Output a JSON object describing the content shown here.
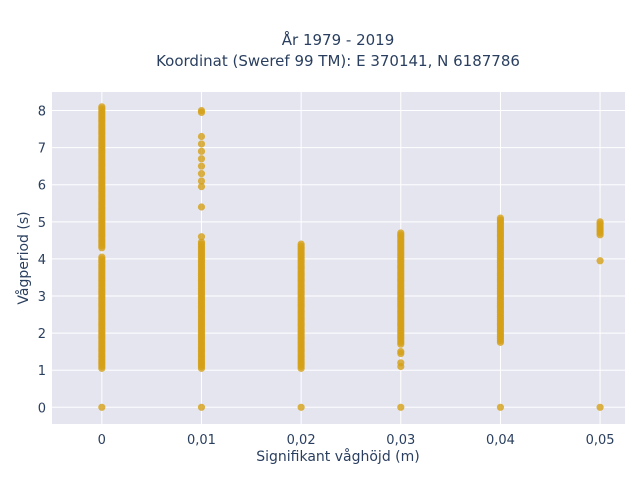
{
  "chart_data": {
    "type": "scatter",
    "title_line1": "År 1979 - 2019",
    "title_line2": "Koordinat (Sweref 99 TM): E 370141, N 6187786",
    "xlabel": "Signifikant våghöjd (m)",
    "ylabel": "Vågperiod (s)",
    "xlim": [
      -0.005,
      0.0525
    ],
    "ylim": [
      -0.45,
      8.5
    ],
    "x_ticks": [
      {
        "value": 0,
        "label": "0"
      },
      {
        "value": 0.01,
        "label": "0,01"
      },
      {
        "value": 0.02,
        "label": "0,02"
      },
      {
        "value": 0.03,
        "label": "0,03"
      },
      {
        "value": 0.04,
        "label": "0,04"
      },
      {
        "value": 0.05,
        "label": "0,05"
      }
    ],
    "y_ticks": [
      {
        "value": 0,
        "label": "0"
      },
      {
        "value": 1,
        "label": "1"
      },
      {
        "value": 2,
        "label": "2"
      },
      {
        "value": 3,
        "label": "3"
      },
      {
        "value": 4,
        "label": "4"
      },
      {
        "value": 5,
        "label": "5"
      },
      {
        "value": 6,
        "label": "6"
      },
      {
        "value": 7,
        "label": "7"
      },
      {
        "value": 8,
        "label": "8"
      }
    ],
    "grid": true,
    "background_color": "#e5e5f0",
    "marker_color": "#d4a017",
    "series": [
      {
        "x": 0,
        "bands": [
          [
            1.05,
            4.05
          ],
          [
            4.3,
            8.1
          ]
        ],
        "points": [
          0
        ]
      },
      {
        "x": 0.01,
        "bands": [
          [
            1.05,
            4.45
          ]
        ],
        "points": [
          0,
          4.6,
          5.4,
          5.95,
          6.1,
          6.3,
          6.5,
          6.7,
          6.9,
          7.1,
          7.3,
          7.95,
          8.0
        ]
      },
      {
        "x": 0.02,
        "bands": [
          [
            1.05,
            4.4
          ]
        ],
        "points": [
          0
        ]
      },
      {
        "x": 0.03,
        "bands": [
          [
            1.7,
            4.7
          ]
        ],
        "points": [
          0,
          1.1,
          1.2,
          1.45,
          1.5
        ]
      },
      {
        "x": 0.04,
        "bands": [
          [
            1.75,
            5.1
          ]
        ],
        "points": [
          0
        ]
      },
      {
        "x": 0.05,
        "bands": [
          [
            4.65,
            5.0
          ]
        ],
        "points": [
          0,
          3.95
        ]
      }
    ]
  }
}
